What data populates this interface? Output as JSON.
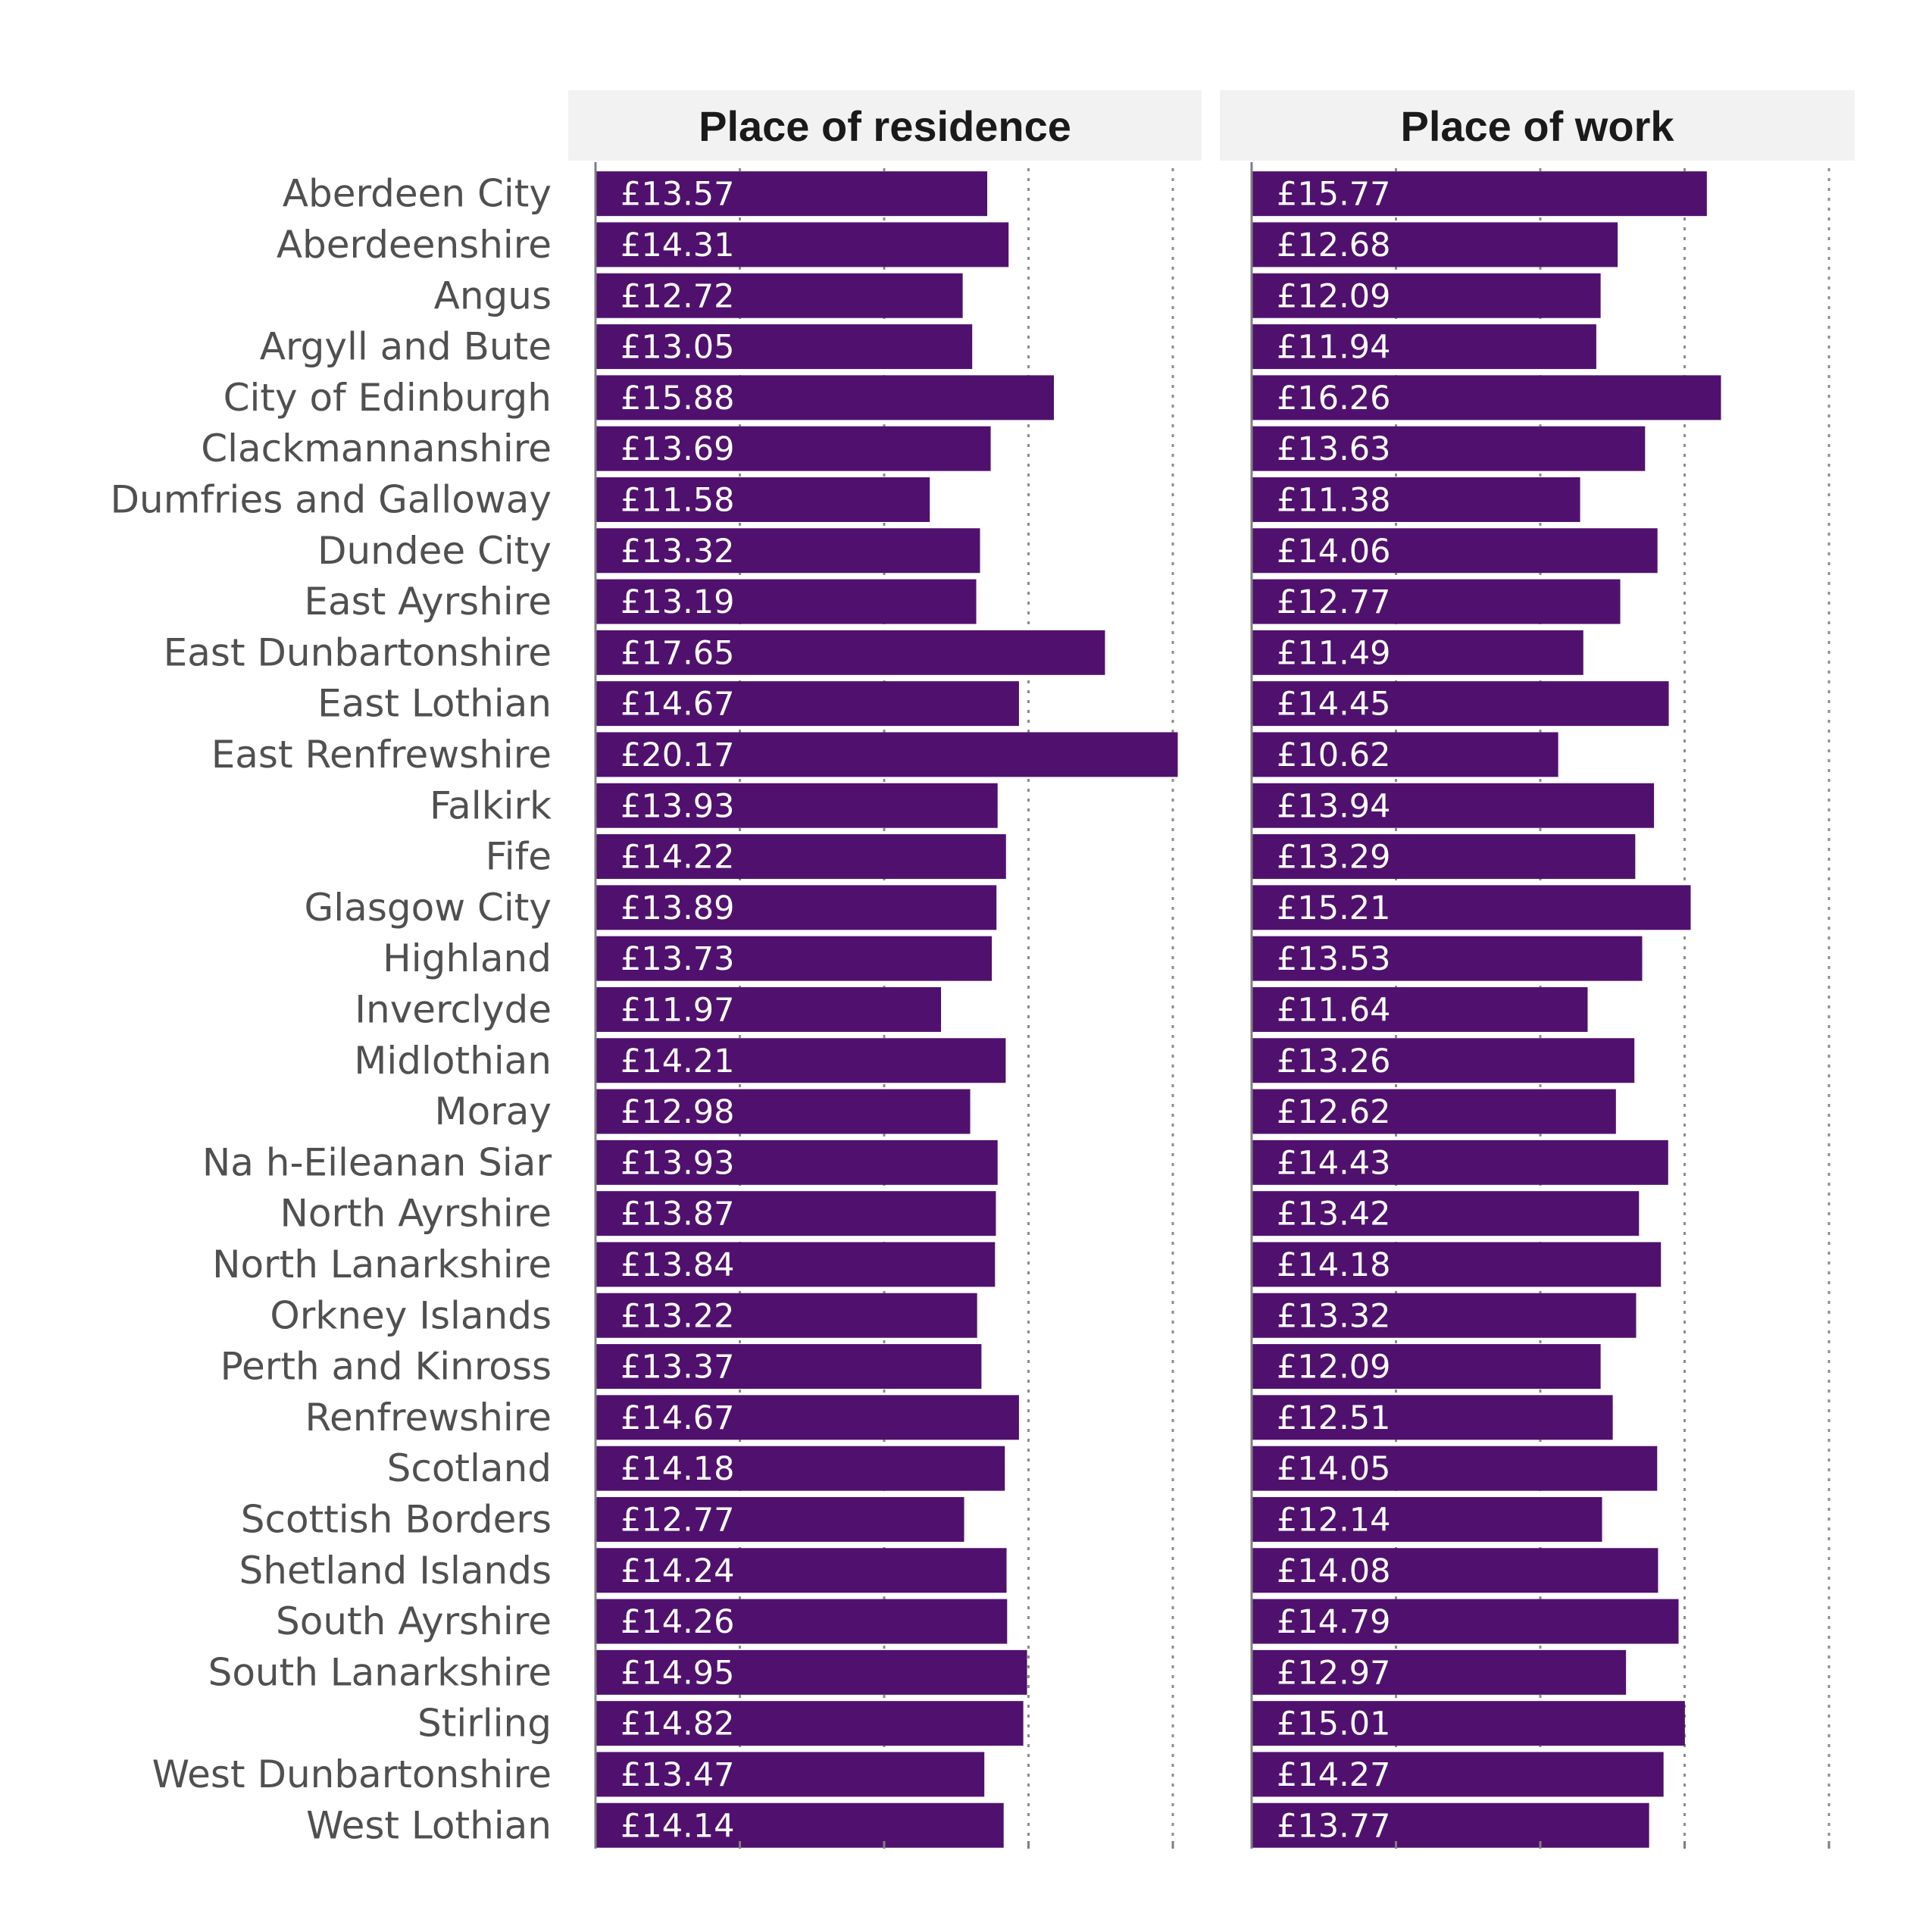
{
  "chart_data": {
    "type": "bar",
    "orientation": "horizontal",
    "bar_color": "#50116e",
    "header_background": "#f2f2f2",
    "value_prefix": "£",
    "xlim": [
      0,
      20
    ],
    "gridlines": [
      5,
      10,
      15,
      20
    ],
    "categories": [
      "Aberdeen City",
      "Aberdeenshire",
      "Angus",
      "Argyll and Bute",
      "City of Edinburgh",
      "Clackmannanshire",
      "Dumfries and Galloway",
      "Dundee City",
      "East Ayrshire",
      "East Dunbartonshire",
      "East Lothian",
      "East Renfrewshire",
      "Falkirk",
      "Fife",
      "Glasgow City",
      "Highland",
      "Inverclyde",
      "Midlothian",
      "Moray",
      "Na h-Eileanan Siar",
      "North Ayrshire",
      "North Lanarkshire",
      "Orkney Islands",
      "Perth and Kinross",
      "Renfrewshire",
      "Scotland",
      "Scottish Borders",
      "Shetland Islands",
      "South Ayrshire",
      "South Lanarkshire",
      "Stirling",
      "West Dunbartonshire",
      "West Lothian"
    ],
    "panels": [
      {
        "title": "Place of residence",
        "values": [
          13.57,
          14.31,
          12.72,
          13.05,
          15.88,
          13.69,
          11.58,
          13.32,
          13.19,
          17.65,
          14.67,
          20.17,
          13.93,
          14.22,
          13.89,
          13.73,
          11.97,
          14.21,
          12.98,
          13.93,
          13.87,
          13.84,
          13.22,
          13.37,
          14.67,
          14.18,
          12.77,
          14.24,
          14.26,
          14.95,
          14.82,
          13.47,
          14.14
        ],
        "labels": [
          "£13.57",
          "£14.31",
          "£12.72",
          "£13.05",
          "£15.88",
          "£13.69",
          "£11.58",
          "£13.32",
          "£13.19",
          "£17.65",
          "£14.67",
          "£20.17",
          "£13.93",
          "£14.22",
          "£13.89",
          "£13.73",
          "£11.97",
          "£14.21",
          "£12.98",
          "£13.93",
          "£13.87",
          "£13.84",
          "£13.22",
          "£13.37",
          "£14.67",
          "£14.18",
          "£12.77",
          "£14.24",
          "£14.26",
          "£14.95",
          "£14.82",
          "£13.47",
          "£14.14"
        ]
      },
      {
        "title": "Place of work",
        "values": [
          15.77,
          12.68,
          12.09,
          11.94,
          16.26,
          13.63,
          11.38,
          14.06,
          12.77,
          11.49,
          14.45,
          10.62,
          13.94,
          13.29,
          15.21,
          13.53,
          11.64,
          13.26,
          12.62,
          14.43,
          13.42,
          14.18,
          13.32,
          12.09,
          12.51,
          14.05,
          12.14,
          14.08,
          14.79,
          12.97,
          15.01,
          14.27,
          13.77
        ],
        "labels": [
          "£15.77",
          "£12.68",
          "£12.09",
          "£11.94",
          "£16.26",
          "£13.63",
          "£11.38",
          "£14.06",
          "£12.77",
          "£11.49",
          "£14.45",
          "£10.62",
          "£13.94",
          "£13.29",
          "£15.21",
          "£13.53",
          "£11.64",
          "£13.26",
          "£12.62",
          "£14.43",
          "£13.42",
          "£14.18",
          "£13.32",
          "£12.09",
          "£12.51",
          "£14.05",
          "£12.14",
          "£14.08",
          "£14.79",
          "£12.97",
          "£15.01",
          "£14.27",
          "£13.77"
        ]
      }
    ]
  }
}
